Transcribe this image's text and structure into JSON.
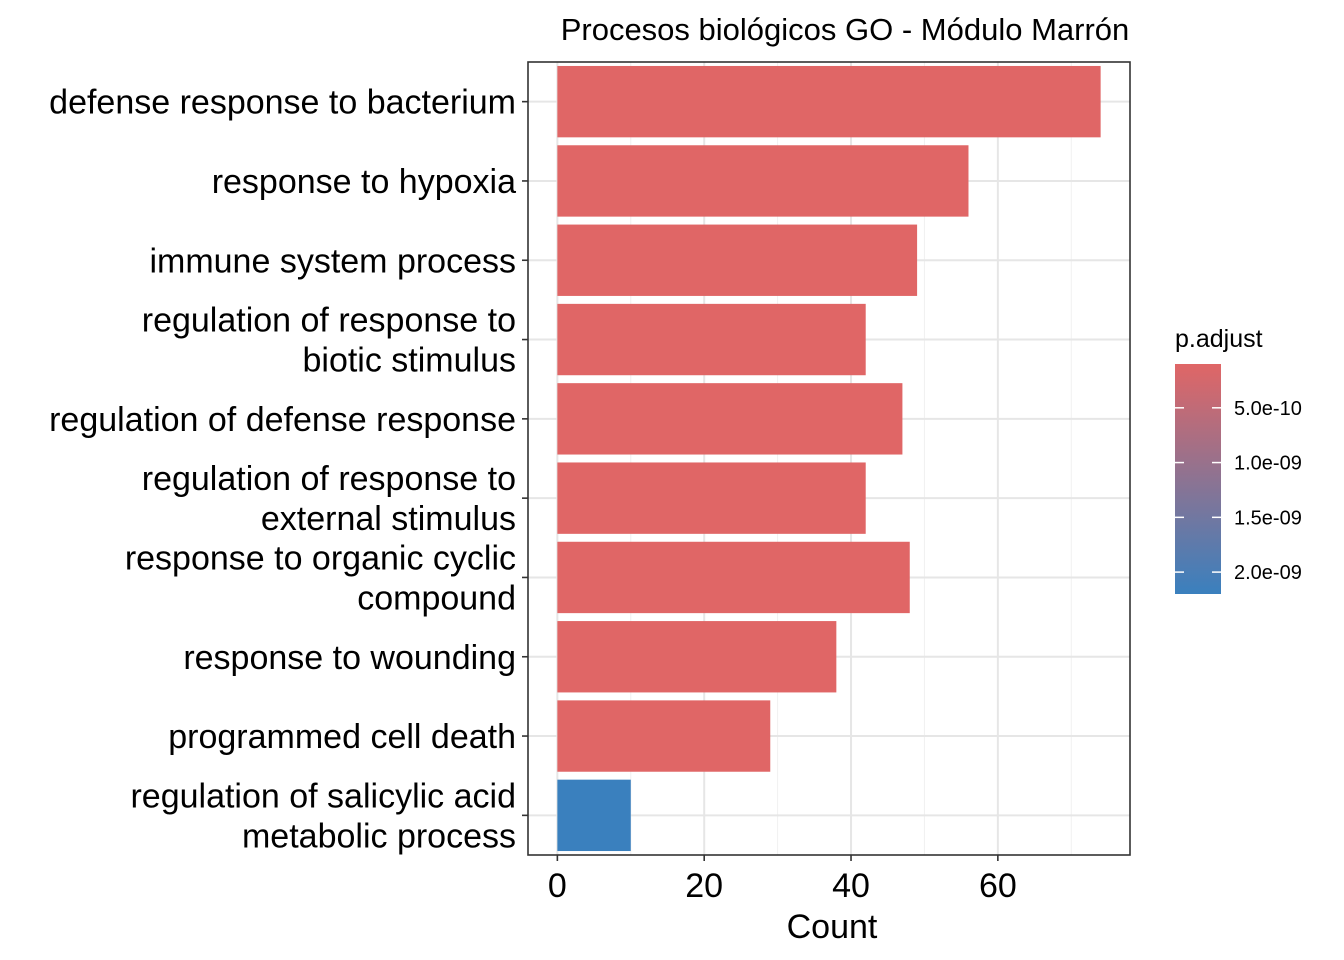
{
  "chart_data": {
    "type": "bar",
    "orientation": "horizontal",
    "title": "Procesos biológicos GO - Módulo Marrón",
    "xlabel": "Count",
    "ylabel": "",
    "xlim": [
      -4,
      78
    ],
    "x_ticks": [
      0,
      20,
      40,
      60
    ],
    "grid": true,
    "categories": [
      [
        "defense response to bacterium"
      ],
      [
        "response to hypoxia"
      ],
      [
        "immune system process"
      ],
      [
        "regulation of response to",
        "biotic stimulus"
      ],
      [
        "regulation of defense response"
      ],
      [
        "regulation of response to",
        "external stimulus"
      ],
      [
        "response to organic cyclic",
        "compound"
      ],
      [
        "response to wounding"
      ],
      [
        "programmed cell death"
      ],
      [
        "regulation of salicylic acid",
        "metabolic process"
      ]
    ],
    "values": [
      74,
      56,
      49,
      42,
      47,
      42,
      48,
      38,
      29,
      10
    ],
    "p_adjust": [
      1e-10,
      1e-10,
      1e-10,
      1e-10,
      1e-10,
      1e-10,
      1e-10,
      1e-10,
      1e-10,
      2.2e-09
    ],
    "legend": {
      "title": "p.adjust",
      "placement": "right",
      "ticks": [
        {
          "value": 5e-10,
          "label": "5.0e-10"
        },
        {
          "value": 1e-09,
          "label": "1.0e-09"
        },
        {
          "value": 1.5e-09,
          "label": "1.5e-09"
        },
        {
          "value": 2e-09,
          "label": "2.0e-09"
        }
      ],
      "range": [
        1e-10,
        2.2e-09
      ],
      "color_low": "#e06666",
      "color_high": "#3a80be"
    }
  }
}
